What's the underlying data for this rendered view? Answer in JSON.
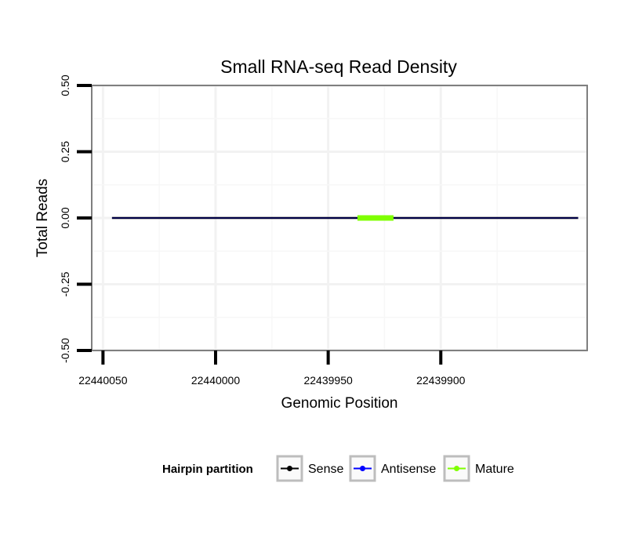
{
  "chart_data": {
    "type": "line",
    "title": "Small RNA-seq Read Density",
    "xlabel": "Genomic Position",
    "ylabel": "Total Reads",
    "x_reversed": true,
    "xlim": [
      22440055,
      22439835
    ],
    "ylim": [
      -0.5,
      0.5
    ],
    "x_ticks": [
      22440050,
      22440000,
      22439950,
      22439900
    ],
    "x_tick_labels": [
      "22440050",
      "22440000",
      "22439950",
      "22439900"
    ],
    "y_ticks": [
      -0.5,
      -0.25,
      0,
      0.25,
      0.5
    ],
    "y_tick_labels": [
      "-0.50",
      "-0.25",
      "0.00",
      "0.25",
      "0.50"
    ],
    "grid": true,
    "legend": {
      "title": "Hairpin partition",
      "position": "bottom",
      "entries": [
        {
          "label": "Sense",
          "color": "#000000"
        },
        {
          "label": "Antisense",
          "color": "#0000ff"
        },
        {
          "label": "Mature",
          "color": "#7fff00"
        }
      ]
    },
    "series": [
      {
        "name": "Sense",
        "color": "#000000",
        "x": [
          22440046,
          22439839
        ],
        "y": [
          0,
          0
        ]
      },
      {
        "name": "Antisense",
        "color": "#0000ff",
        "x": [
          22440046,
          22439839
        ],
        "y": [
          0,
          0
        ]
      },
      {
        "name": "Mature",
        "color": "#7fff00",
        "x": [
          22439937,
          22439921
        ],
        "y": [
          0,
          0
        ]
      }
    ]
  }
}
